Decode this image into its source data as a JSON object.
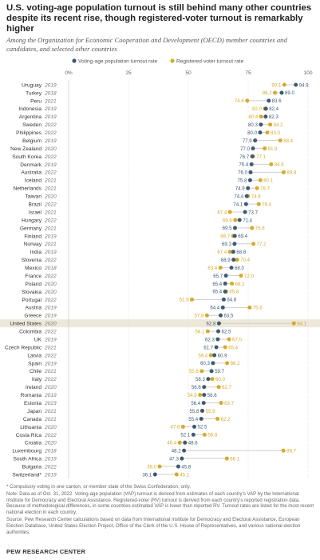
{
  "chart_data": {
    "type": "scatter",
    "title": "U.S. voting-age population turnout is still behind many other countries despite its recent rise, though registered-voter turnout is remarkably higher",
    "subtitle": "Among the Organization for Economic Cooperation and Development (OECD) member countries and candidates, and selected other countries",
    "legend": {
      "position": "top",
      "entries": [
        "Voting-age population turnout rate",
        "Registered-voter turnout rate"
      ]
    },
    "x_axis": {
      "ticks": [
        "0%",
        "25",
        "50",
        "75",
        "100"
      ],
      "range": [
        0,
        100
      ],
      "grid": true
    },
    "colors": {
      "vap": "#3d5a73",
      "rv": "#d6aa2b",
      "highlight": "#ede8da"
    },
    "highlight_country": "United States",
    "countries": [
      {
        "name": "Uruguay",
        "year": "2019",
        "vap": "94.9",
        "rv": "90.1"
      },
      {
        "name": "Turkey",
        "year": "2018",
        "vap": "89.0",
        "rv": "86.2"
      },
      {
        "name": "Peru",
        "year": "2021",
        "vap": "83.6",
        "rv": "74.6"
      },
      {
        "name": "Indonesia",
        "year": "2019",
        "vap": "82.4",
        "rv": "82.0"
      },
      {
        "name": "Argentina",
        "year": "2019",
        "vap": "82.3",
        "rv": "80.4"
      },
      {
        "name": "Sweden",
        "year": "2022",
        "vap": "80.3",
        "rv": "84.2"
      },
      {
        "name": "Philippines",
        "year": "2022",
        "vap": "80.0",
        "rv": "83.0"
      },
      {
        "name": "Belgium",
        "year": "2019",
        "vap": "77.9",
        "rv": "88.4"
      },
      {
        "name": "New Zealand",
        "year": "2020",
        "vap": "77.0",
        "rv": "81.9"
      },
      {
        "name": "South Korea",
        "year": "2022",
        "vap": "76.7",
        "rv": "77.1"
      },
      {
        "name": "Denmark",
        "year": "2019",
        "vap": "76.4",
        "rv": "84.6"
      },
      {
        "name": "Australia",
        "year": "2022",
        "vap": "76.0",
        "rv": "89.8"
      },
      {
        "name": "Iceland",
        "year": "2021",
        "vap": "75.8",
        "rv": "80.1"
      },
      {
        "name": "Netherlands",
        "year": "2021",
        "vap": "74.9",
        "rv": "78.7"
      },
      {
        "name": "Taiwan",
        "year": "2020",
        "vap": "74.4",
        "rv": "74.9"
      },
      {
        "name": "Brazil",
        "year": "2022",
        "vap": "74.1",
        "rv": "79.4"
      },
      {
        "name": "Israel",
        "year": "2021",
        "vap": "73.7",
        "rv": "67.4"
      },
      {
        "name": "Hungary",
        "year": "2022",
        "vap": "71.4",
        "rv": "69.6"
      },
      {
        "name": "Germany",
        "year": "2021",
        "vap": "69.5",
        "rv": "76.6"
      },
      {
        "name": "Finland",
        "year": "2019",
        "vap": "69.4",
        "rv": "68.7"
      },
      {
        "name": "Norway",
        "year": "2021",
        "vap": "69.3",
        "rv": "77.2"
      },
      {
        "name": "India",
        "year": "2019",
        "vap": "68.8",
        "rv": "67.4"
      },
      {
        "name": "Slovenia",
        "year": "2022",
        "vap": "68.9",
        "rv": "70.4"
      },
      {
        "name": "Mexico",
        "year": "2018",
        "vap": "68.0",
        "rv": "63.4"
      },
      {
        "name": "France",
        "year": "2022",
        "vap": "65.7",
        "rv": "72.0"
      },
      {
        "name": "Poland",
        "year": "2020",
        "vap": "65.4",
        "rv": "68.2"
      },
      {
        "name": "Slovakia",
        "year": "2020",
        "vap": "65.4",
        "rv": "65.8"
      },
      {
        "name": "Portugal",
        "year": "2022",
        "vap": "64.8",
        "rv": "51.5"
      },
      {
        "name": "Austria",
        "year": "2019",
        "vap": "64.4",
        "rv": "75.6"
      },
      {
        "name": "Greece",
        "year": "2019",
        "vap": "63.5",
        "rv": "57.8"
      },
      {
        "name": "United States",
        "year": "2020",
        "vap": "62.8",
        "rv": "94.1"
      },
      {
        "name": "Colombia",
        "year": "2022",
        "vap": "62.5",
        "rv": "58.1"
      },
      {
        "name": "UK",
        "year": "2019",
        "vap": "62.3",
        "rv": "67.0"
      },
      {
        "name": "Czech Republic",
        "year": "2021",
        "vap": "61.7",
        "rv": "65.4"
      },
      {
        "name": "Latvia",
        "year": "2022",
        "vap": "60.9",
        "rv": "59.4"
      },
      {
        "name": "Spain",
        "year": "2019",
        "vap": "60.3",
        "rv": "66.2"
      },
      {
        "name": "Chile",
        "year": "2021",
        "vap": "59.7",
        "rv": "55.6"
      },
      {
        "name": "Italy",
        "year": "2022",
        "vap": "58.3",
        "rv": "60.0"
      },
      {
        "name": "Ireland",
        "year": "2020",
        "vap": "56.6",
        "rv": "62.7"
      },
      {
        "name": "Romania",
        "year": "2019",
        "vap": "56.6",
        "rv": "54.9"
      },
      {
        "name": "Estonia",
        "year": "2023",
        "vap": "56.4",
        "rv": "63.7"
      },
      {
        "name": "Japan",
        "year": "2021",
        "vap": "55.8",
        "rv": "55.9"
      },
      {
        "name": "Canada",
        "year": "2021",
        "vap": "55.4",
        "rv": "62.2"
      },
      {
        "name": "Lithuania",
        "year": "2020",
        "vap": "52.5",
        "rv": "47.8"
      },
      {
        "name": "Costa Rica",
        "year": "2022",
        "vap": "52.1",
        "rv": "56.8"
      },
      {
        "name": "Croatia",
        "year": "2020",
        "vap": "48.6",
        "rv": "46.4"
      },
      {
        "name": "Luxembourg",
        "year": "2018",
        "vap": "48.2",
        "rv": "89.7"
      },
      {
        "name": "South Africa",
        "year": "2019",
        "vap": "47.3",
        "rv": "66.1"
      },
      {
        "name": "Bulgaria",
        "year": "2022",
        "vap": "45.8",
        "rv": "38.0"
      },
      {
        "name": "Switzerland*",
        "year": "2019",
        "vap": "36.1",
        "rv": "45.1"
      }
    ]
  },
  "notes": {
    "footnote": "* Compulsory voting in one canton, or member state of the Swiss Confederation, only.",
    "note": "Note: Data as of Oct. 31, 2022. Voting-age population (VAP) turnout is derived from estimates of each country's VAP by the International Institute for Democracy and Electoral Assistance. Registered-voter (RV) turnout is derived from each country's reported registration data. Because of methodological differences, in some countries estimated VAP is lower than reported RV. Turnout rates are listed for the most recent national election in each country.",
    "source": "Source: Pew Research Center calculations based on data from International Institute for Democracy and Electoral Assistance, European Election Database, United States Election Project, Office of the Clerk of the U.S. House of Representatives, and various national election authorities."
  },
  "credit": "PEW RESEARCH CENTER"
}
